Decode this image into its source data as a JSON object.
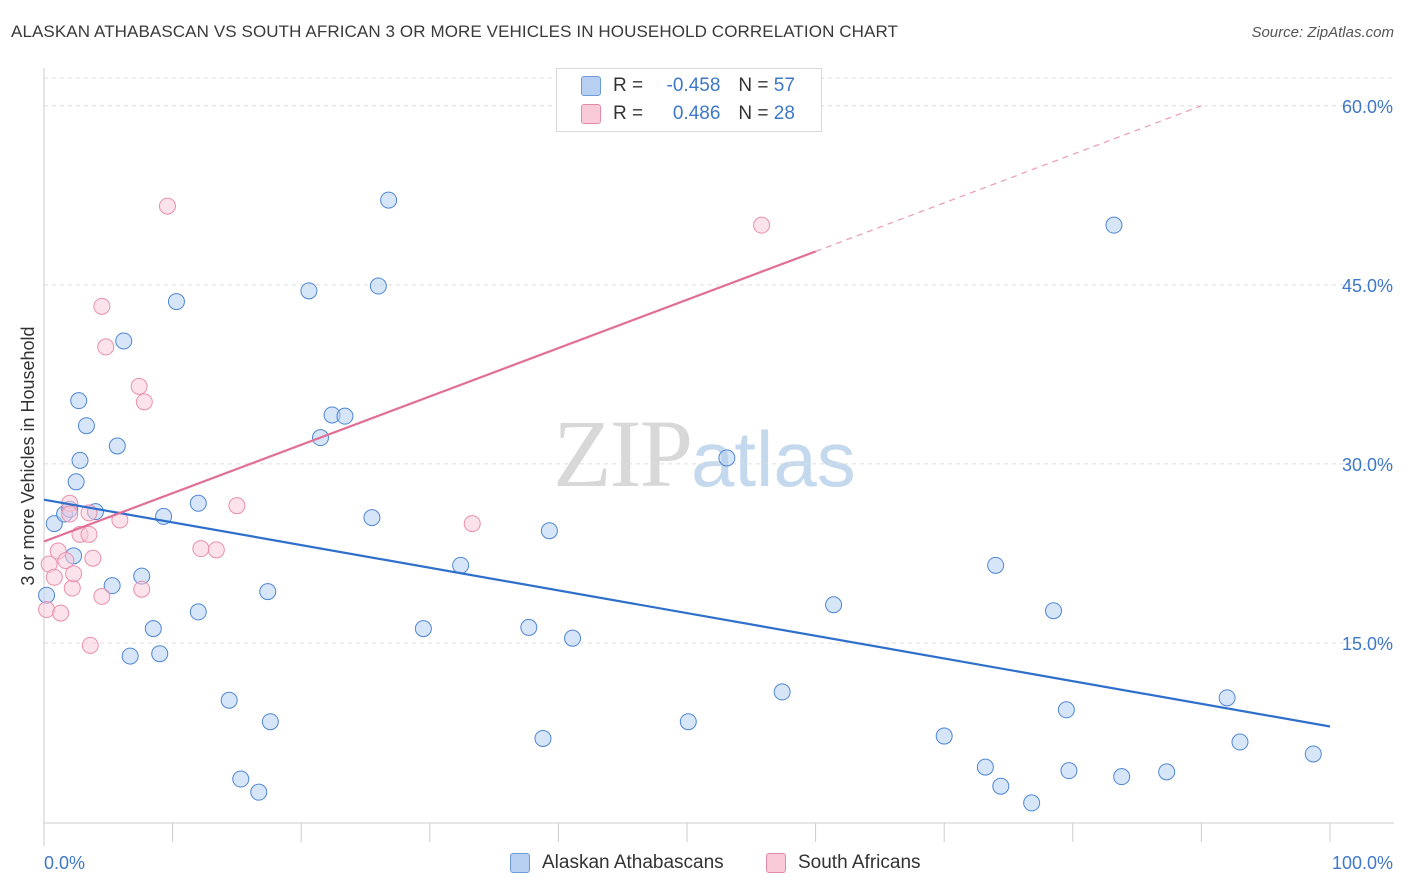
{
  "title": "ALASKAN ATHABASCAN VS SOUTH AFRICAN 3 OR MORE VEHICLES IN HOUSEHOLD CORRELATION CHART",
  "source": "Source: ZipAtlas.com",
  "watermark": {
    "zip": "ZIP",
    "atlas": "atlas"
  },
  "legend": {
    "r_label": "R =",
    "n_label": "N =",
    "rows": [
      {
        "r": "-0.458",
        "n": "57",
        "color": "#a9c8f0",
        "border": "#6c9bd8"
      },
      {
        "r": "0.486",
        "n": "28",
        "color": "#f7bfd0",
        "border": "#e38aa8"
      }
    ]
  },
  "chart_data": {
    "type": "scatter",
    "title": "ALASKAN ATHABASCAN VS SOUTH AFRICAN 3 OR MORE VEHICLES IN HOUSEHOLD CORRELATION CHART",
    "xlabel": "",
    "ylabel": "3 or more Vehicles in Household",
    "xlim": [
      0,
      100
    ],
    "ylim": [
      0,
      63
    ],
    "x_tick_labels": [
      "0.0%",
      "100.0%"
    ],
    "y_ticks": [
      15,
      30,
      45,
      60
    ],
    "y_tick_labels": [
      "15.0%",
      "30.0%",
      "45.0%",
      "60.0%"
    ],
    "grid": "horizontal dashed",
    "legend_position": "top-center and bottom",
    "series": [
      {
        "name": "Alaskan Athabascans",
        "color": "#4f87d4",
        "fill": "#b7d0f2",
        "trend": {
          "x": [
            0,
            100
          ],
          "y": [
            27.0,
            8.0
          ],
          "color": "#2f6fcc"
        },
        "points": [
          [
            0.2,
            19.0
          ],
          [
            0.8,
            25.0
          ],
          [
            1.6,
            25.8
          ],
          [
            2.0,
            26.2
          ],
          [
            2.5,
            28.5
          ],
          [
            2.3,
            22.3
          ],
          [
            2.8,
            30.3
          ],
          [
            2.7,
            35.3
          ],
          [
            3.3,
            33.2
          ],
          [
            4.0,
            26.0
          ],
          [
            5.7,
            31.5
          ],
          [
            5.3,
            19.8
          ],
          [
            6.2,
            40.3
          ],
          [
            6.7,
            13.9
          ],
          [
            7.6,
            20.6
          ],
          [
            8.5,
            16.2
          ],
          [
            9.0,
            14.1
          ],
          [
            9.3,
            25.6
          ],
          [
            10.3,
            43.6
          ],
          [
            12.0,
            26.7
          ],
          [
            12.0,
            17.6
          ],
          [
            14.4,
            10.2
          ],
          [
            15.3,
            3.6
          ],
          [
            16.7,
            2.5
          ],
          [
            17.4,
            19.3
          ],
          [
            17.6,
            8.4
          ],
          [
            20.6,
            44.5
          ],
          [
            21.5,
            32.2
          ],
          [
            22.4,
            34.1
          ],
          [
            23.4,
            34.0
          ],
          [
            25.5,
            25.5
          ],
          [
            26.0,
            44.9
          ],
          [
            26.8,
            52.1
          ],
          [
            29.5,
            16.2
          ],
          [
            32.4,
            21.5
          ],
          [
            37.7,
            16.3
          ],
          [
            38.8,
            7.0
          ],
          [
            39.3,
            24.4
          ],
          [
            41.1,
            15.4
          ],
          [
            50.1,
            8.4
          ],
          [
            53.1,
            30.5
          ],
          [
            57.4,
            10.9
          ],
          [
            61.4,
            18.2
          ],
          [
            70.0,
            7.2
          ],
          [
            73.2,
            4.6
          ],
          [
            74.0,
            21.5
          ],
          [
            74.4,
            3.0
          ],
          [
            76.8,
            1.6
          ],
          [
            78.5,
            17.7
          ],
          [
            79.5,
            9.4
          ],
          [
            79.7,
            4.3
          ],
          [
            83.2,
            50.0
          ],
          [
            83.8,
            3.8
          ],
          [
            87.3,
            4.2
          ],
          [
            92.0,
            10.4
          ],
          [
            93.0,
            6.7
          ],
          [
            98.7,
            5.7
          ]
        ]
      },
      {
        "name": "South Africans",
        "color": "#e890ad",
        "fill": "#f9cbd9",
        "trend": {
          "x": [
            0,
            60
          ],
          "y": [
            23.5,
            47.8
          ],
          "color": "#e16f96",
          "dashed_to": {
            "x": 90,
            "y": 60.0
          }
        },
        "points": [
          [
            0.2,
            17.8
          ],
          [
            0.4,
            21.6
          ],
          [
            0.8,
            20.5
          ],
          [
            1.1,
            22.7
          ],
          [
            1.3,
            17.5
          ],
          [
            1.7,
            21.9
          ],
          [
            2.0,
            26.7
          ],
          [
            2.0,
            25.8
          ],
          [
            2.2,
            19.6
          ],
          [
            2.3,
            20.8
          ],
          [
            2.8,
            24.1
          ],
          [
            3.5,
            24.1
          ],
          [
            3.5,
            25.9
          ],
          [
            3.6,
            14.8
          ],
          [
            3.8,
            22.1
          ],
          [
            4.5,
            18.9
          ],
          [
            4.5,
            43.2
          ],
          [
            4.8,
            39.8
          ],
          [
            5.9,
            25.3
          ],
          [
            7.4,
            36.5
          ],
          [
            7.6,
            19.5
          ],
          [
            7.8,
            35.2
          ],
          [
            9.6,
            51.6
          ],
          [
            12.2,
            22.9
          ],
          [
            13.4,
            22.8
          ],
          [
            15.0,
            26.5
          ],
          [
            33.3,
            25.0
          ],
          [
            55.8,
            50.0
          ]
        ]
      }
    ]
  },
  "bottom_legend": [
    {
      "label": "Alaskan Athabascans",
      "color": "#b7d0f2",
      "border": "#6c9bd8"
    },
    {
      "label": "South Africans",
      "color": "#f9cbd9",
      "border": "#e38aa8"
    }
  ]
}
